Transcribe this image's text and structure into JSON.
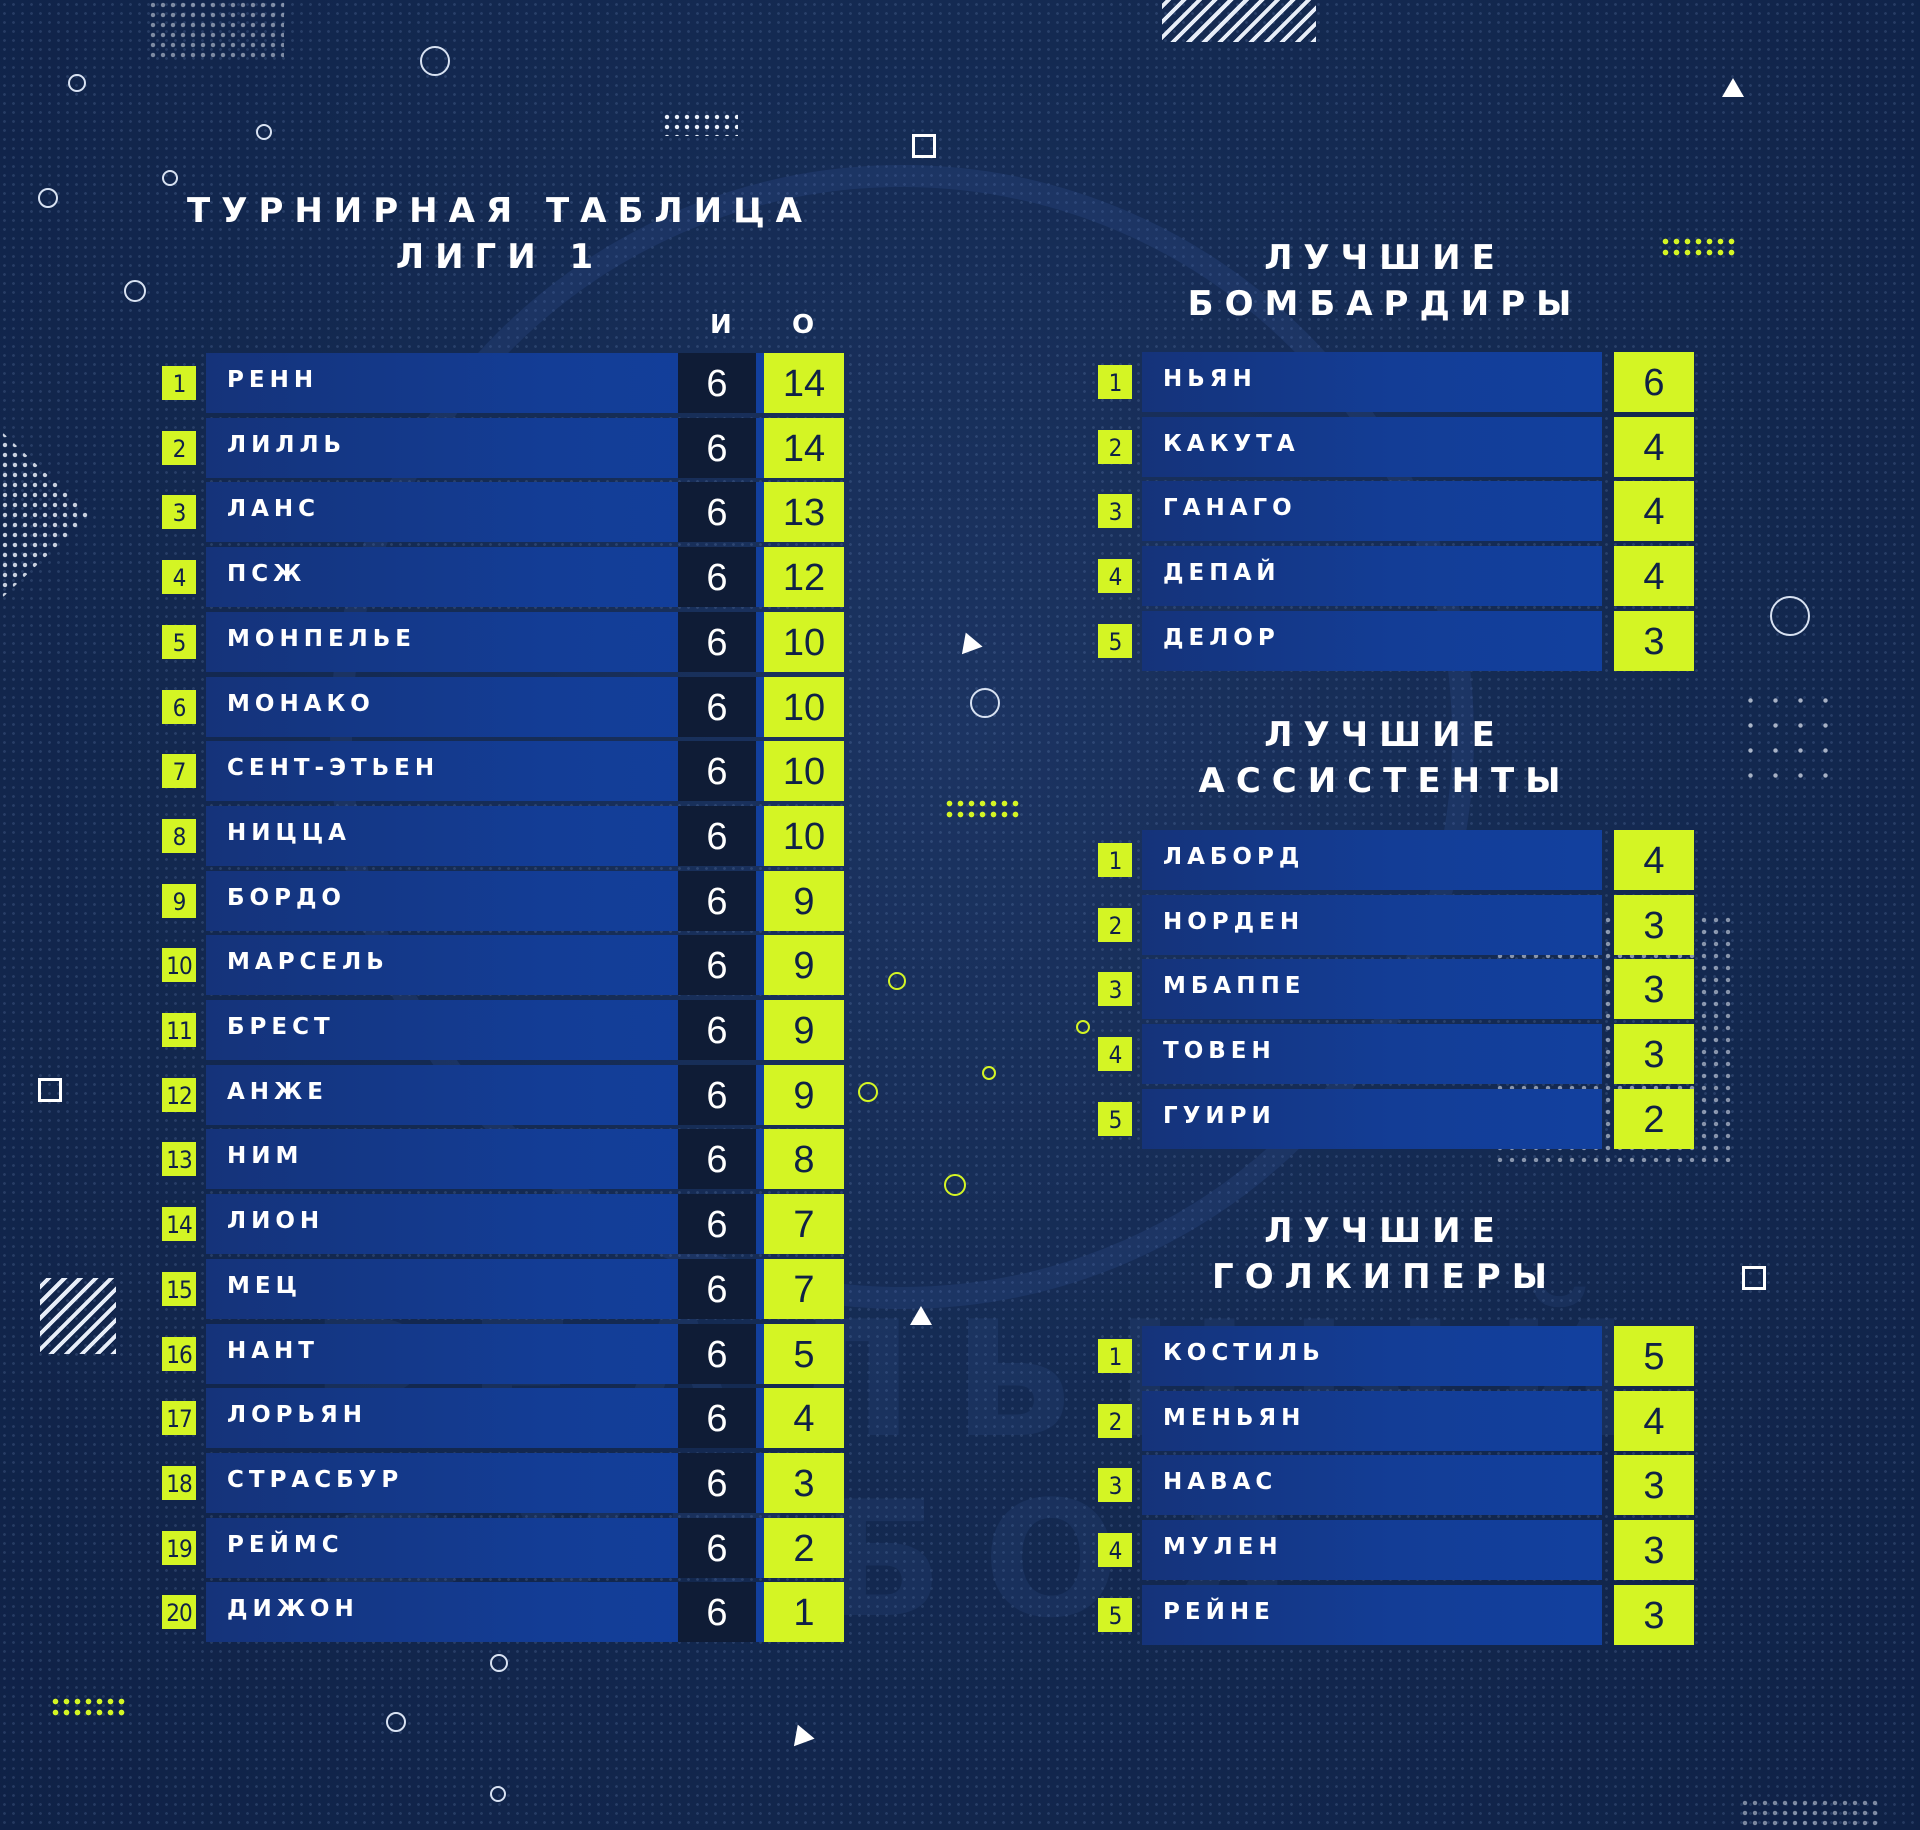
{
  "league_table": {
    "title_line1": "ТУРНИРНАЯ ТАБЛИЦА",
    "title_line2": "ЛИГИ 1",
    "col_games": "И",
    "col_points": "О",
    "rows": [
      {
        "pos": "1",
        "team": "РЕНН",
        "games": "6",
        "points": "14"
      },
      {
        "pos": "2",
        "team": "ЛИЛЛЬ",
        "games": "6",
        "points": "14"
      },
      {
        "pos": "3",
        "team": "ЛАНС",
        "games": "6",
        "points": "13"
      },
      {
        "pos": "4",
        "team": "ПСЖ",
        "games": "6",
        "points": "12"
      },
      {
        "pos": "5",
        "team": "МОНПЕЛЬЕ",
        "games": "6",
        "points": "10"
      },
      {
        "pos": "6",
        "team": "МОНАКО",
        "games": "6",
        "points": "10"
      },
      {
        "pos": "7",
        "team": "СЕНТ-ЭТЬЕН",
        "games": "6",
        "points": "10"
      },
      {
        "pos": "8",
        "team": "НИЦЦА",
        "games": "6",
        "points": "10"
      },
      {
        "pos": "9",
        "team": "БОРДО",
        "games": "6",
        "points": "9"
      },
      {
        "pos": "10",
        "team": "МАРСЕЛЬ",
        "games": "6",
        "points": "9"
      },
      {
        "pos": "11",
        "team": "БРЕСТ",
        "games": "6",
        "points": "9"
      },
      {
        "pos": "12",
        "team": "АНЖЕ",
        "games": "6",
        "points": "9"
      },
      {
        "pos": "13",
        "team": "НИМ",
        "games": "6",
        "points": "8"
      },
      {
        "pos": "14",
        "team": "ЛИОН",
        "games": "6",
        "points": "7"
      },
      {
        "pos": "15",
        "team": "МЕЦ",
        "games": "6",
        "points": "7"
      },
      {
        "pos": "16",
        "team": "НАНТ",
        "games": "6",
        "points": "5"
      },
      {
        "pos": "17",
        "team": "ЛОРЬЯН",
        "games": "6",
        "points": "4"
      },
      {
        "pos": "18",
        "team": "СТРАСБУР",
        "games": "6",
        "points": "3"
      },
      {
        "pos": "19",
        "team": "РЕЙМС",
        "games": "6",
        "points": "2"
      },
      {
        "pos": "20",
        "team": "ДИЖОН",
        "games": "6",
        "points": "1"
      }
    ]
  },
  "scorers": {
    "title_line1": "ЛУЧШИЕ",
    "title_line2": "БОМБАРДИРЫ",
    "rows": [
      {
        "pos": "1",
        "name": "НЬЯН",
        "value": "6"
      },
      {
        "pos": "2",
        "name": "КАКУТА",
        "value": "4"
      },
      {
        "pos": "3",
        "name": "ГАНАГО",
        "value": "4"
      },
      {
        "pos": "4",
        "name": "ДЕПАЙ",
        "value": "4"
      },
      {
        "pos": "5",
        "name": "ДЕЛОР",
        "value": "3"
      }
    ]
  },
  "assists": {
    "title_line1": "ЛУЧШИЕ",
    "title_line2": "АССИСТЕНТЫ",
    "rows": [
      {
        "pos": "1",
        "name": "ЛАБОРД",
        "value": "4"
      },
      {
        "pos": "2",
        "name": "НОРДЕН",
        "value": "3"
      },
      {
        "pos": "3",
        "name": "МБАППЕ",
        "value": "3"
      },
      {
        "pos": "4",
        "name": "ТОВЕН",
        "value": "3"
      },
      {
        "pos": "5",
        "name": "ГУИРИ",
        "value": "2"
      }
    ]
  },
  "goalkeepers": {
    "title_line1": "ЛУЧШИЕ",
    "title_line2": "ГОЛКИПЕРЫ",
    "rows": [
      {
        "pos": "1",
        "name": "КОСТИЛЬ",
        "value": "5"
      },
      {
        "pos": "2",
        "name": "МЕНЬЯН",
        "value": "4"
      },
      {
        "pos": "3",
        "name": "НАВАС",
        "value": "3"
      },
      {
        "pos": "4",
        "name": "МУЛЕН",
        "value": "3"
      },
      {
        "pos": "5",
        "name": "РЕЙНЕ",
        "value": "3"
      }
    ]
  },
  "watermark": {
    "line1": "РЕАЛЬНЫЙ",
    "line2": "ФУТБОЛ"
  },
  "colors": {
    "accent": "#d4f524",
    "background": "#142a52",
    "bar": "#133d96",
    "played_cell": "#0f1c36"
  }
}
